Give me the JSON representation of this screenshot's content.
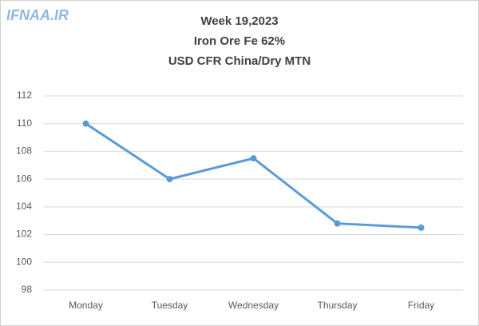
{
  "chart_data": {
    "type": "line",
    "watermark": "IFNAA.IR",
    "title": [
      "Week 19,2023",
      "Iron Ore Fe 62%",
      "USD CFR China/Dry MTN"
    ],
    "categories": [
      "Monday",
      "Tuesday",
      "Wednesday",
      "Thursday",
      "Friday"
    ],
    "series": [
      {
        "name": "Iron Ore Fe 62%",
        "color": "#5b9bd5",
        "values": [
          110,
          106,
          107.5,
          102.8,
          102.5
        ]
      }
    ],
    "ylim": [
      98,
      112
    ],
    "yticks": [
      98,
      100,
      102,
      104,
      106,
      108,
      110,
      112
    ],
    "grid": true
  }
}
